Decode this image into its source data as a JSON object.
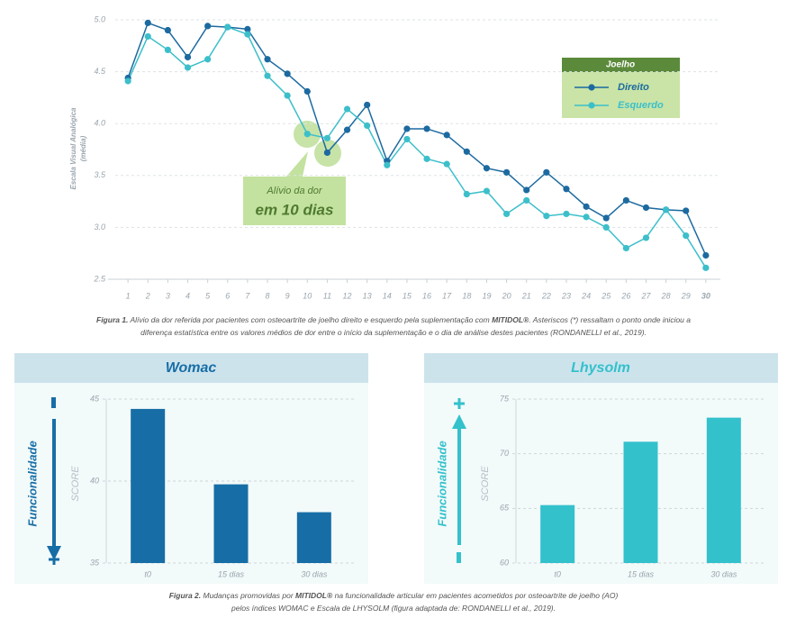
{
  "chart_data": [
    {
      "type": "line",
      "ylabel": [
        "Escala Visual Analógica",
        "(média)"
      ],
      "x": [
        1,
        2,
        3,
        4,
        5,
        6,
        7,
        8,
        9,
        10,
        11,
        12,
        13,
        14,
        15,
        16,
        17,
        18,
        19,
        20,
        21,
        22,
        23,
        24,
        25,
        26,
        27,
        28,
        29,
        30
      ],
      "xlim": [
        0,
        31
      ],
      "xticks": [
        1,
        2,
        3,
        4,
        5,
        6,
        7,
        8,
        9,
        10,
        11,
        12,
        13,
        14,
        15,
        16,
        17,
        18,
        19,
        20,
        21,
        22,
        23,
        24,
        25,
        26,
        27,
        28,
        29,
        30
      ],
      "ylim": [
        2.5,
        5.0
      ],
      "yticks": [
        2.5,
        {
          "value": 3,
          "label": "3.0"
        },
        3.5,
        {
          "value": 4,
          "label": "4.0"
        },
        4.5,
        {
          "value": 5,
          "label": "5.0"
        }
      ],
      "grid": true,
      "legend_title": "Joelho",
      "series": [
        {
          "name": "Direito",
          "color": "#1c6aa0",
          "values": [
            4.44,
            4.97,
            4.9,
            4.64,
            4.94,
            4.93,
            4.91,
            4.62,
            4.48,
            4.31,
            3.72,
            3.94,
            4.18,
            3.64,
            3.95,
            3.95,
            3.89,
            3.73,
            3.57,
            3.53,
            3.36,
            3.53,
            3.37,
            3.2,
            3.09,
            3.26,
            3.19,
            3.17,
            3.16,
            2.73
          ]
        },
        {
          "name": "Esquerdo",
          "color": "#3cbfca",
          "values": [
            4.41,
            4.84,
            4.71,
            4.54,
            4.62,
            4.93,
            4.86,
            4.46,
            4.27,
            3.9,
            3.86,
            4.14,
            3.98,
            3.6,
            3.85,
            3.66,
            3.61,
            3.32,
            3.35,
            3.13,
            3.26,
            3.11,
            3.13,
            3.1,
            3.0,
            2.8,
            2.9,
            3.17,
            2.92,
            2.61
          ]
        }
      ],
      "annotation": [
        "Alívio da dor",
        "em 10 dias"
      ]
    },
    {
      "type": "bar",
      "title": "Womac",
      "ylabel": "SCORE",
      "side_label": "Funcionalidade",
      "categories": [
        "t0",
        "15 dias",
        "30 dias"
      ],
      "values": [
        44.4,
        39.8,
        38.1
      ],
      "color": "#176ea6",
      "ylim": [
        35,
        45
      ],
      "yticks": [
        35,
        40,
        45
      ],
      "grid": true,
      "direction": "down"
    },
    {
      "type": "bar",
      "title": "Lhysolm",
      "ylabel": "SCORE",
      "side_label": "Funcionalidade",
      "categories": [
        "t0",
        "15 dias",
        "30 dias"
      ],
      "values": [
        65.3,
        71.1,
        73.3
      ],
      "color": "#33c1cc",
      "ylim": [
        60,
        75
      ],
      "yticks": [
        60,
        65,
        70,
        75
      ],
      "grid": true,
      "direction": "up"
    }
  ],
  "captions": [
    [
      [
        {
          "text": "Figura 1.",
          "bold": true
        },
        {
          "text": " Alívio da dor referida por pacientes com osteoartrite de joelho direito e esquerdo pela suplementação com "
        },
        {
          "text": "MITIDOL®",
          "bold": true
        },
        {
          "text": ". Asteriscos (*) ressaltam o ponto onde iniciou a"
        }
      ],
      [
        {
          "text": "diferença estatística entre os valores médios de dor entre o início da suplementação e o dia de análise destes pacientes (RONDANELLI et al., 2019)."
        }
      ]
    ],
    [
      [
        {
          "text": "Figura 2.",
          "bold": true
        },
        {
          "text": " Mudanças promovidas por "
        },
        {
          "text": "MITIDOL®",
          "bold": true
        },
        {
          "text": " na funcionalidade articular em pacientes acometidos por osteoartrite de joelho (AO)"
        }
      ],
      [
        {
          "text": "pelos índices WOMAC e Escala de LHYSOLM (figura adaptada de: RONDANELLI et al., 2019)."
        }
      ]
    ]
  ]
}
